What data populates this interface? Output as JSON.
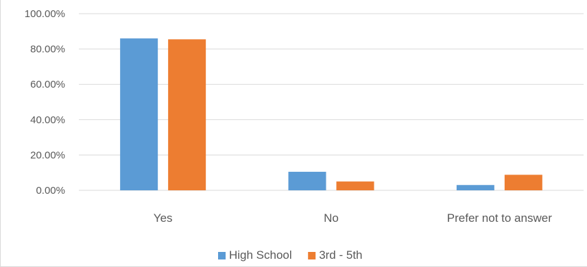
{
  "chart_data": {
    "type": "bar",
    "categories": [
      "Yes",
      "No",
      "Prefer not to answer"
    ],
    "series": [
      {
        "name": "High School",
        "values": [
          86.0,
          10.5,
          3.0
        ],
        "color": "#5b9bd5"
      },
      {
        "name": "3rd - 5th",
        "values": [
          85.5,
          5.0,
          8.8
        ],
        "color": "#ed7d31"
      }
    ],
    "y_ticks": [
      "0.00%",
      "20.00%",
      "40.00%",
      "60.00%",
      "80.00%",
      "100.00%"
    ],
    "ylim": [
      0,
      100
    ],
    "title": "",
    "xlabel": "",
    "ylabel": "",
    "grid": true,
    "gridline_color": "#d9d9d9",
    "legend_position": "bottom"
  }
}
